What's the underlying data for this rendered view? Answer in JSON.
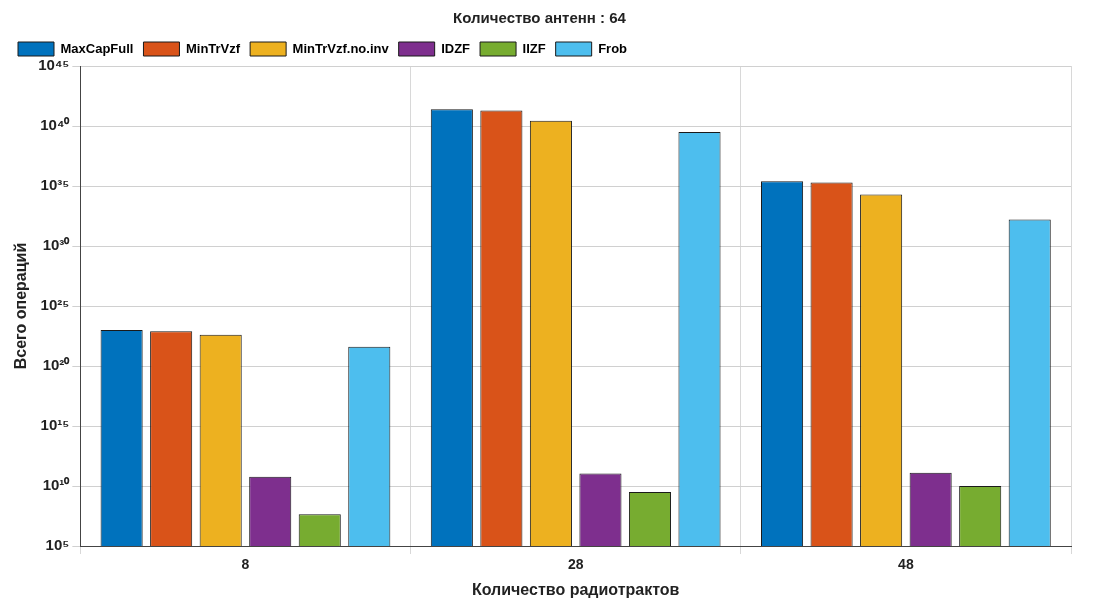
{
  "chart_data": {
    "type": "bar",
    "title": "Количество антенн : 64",
    "xlabel": "Количество радиотрактов",
    "ylabel": "Всего операций",
    "categories": [
      "8",
      "28",
      "48"
    ],
    "series": [
      {
        "name": "MaxCapFull",
        "color": "#0072bd",
        "values": [
          1e+23,
          2.5e+41,
          2.5e+35
        ]
      },
      {
        "name": "MinTrVzf",
        "color": "#d95319",
        "values": [
          8e+22,
          2e+41,
          2e+35
        ]
      },
      {
        "name": "MinTrVzf.no.inv",
        "color": "#edb120",
        "values": [
          4e+22,
          2.8e+40,
          2e+34
        ]
      },
      {
        "name": "IDZF",
        "color": "#7e2f8e",
        "values": [
          60000000000.0,
          110000000000.0,
          130000000000.0
        ]
      },
      {
        "name": "IIZF",
        "color": "#77ac30",
        "values": [
          45000000.0,
          3200000000.0,
          10000000000.0
        ]
      },
      {
        "name": "Frob",
        "color": "#4dbeee",
        "values": [
          4e+21,
          3.2e+39,
          1.6e+32
        ]
      }
    ],
    "log": "y",
    "ylim": [
      100000.0,
      1e+45
    ],
    "yticks": [
      {
        "value": 100000.0,
        "label": "10⁵"
      },
      {
        "value": 10000000000.0,
        "label": "10¹⁰"
      },
      {
        "value": 1000000000000000.0,
        "label": "10¹⁵"
      },
      {
        "value": 1e+20,
        "label": "10²⁰"
      },
      {
        "value": 1e+25,
        "label": "10²⁵"
      },
      {
        "value": 1e+30,
        "label": "10³⁰"
      },
      {
        "value": 1e+35,
        "label": "10³⁵"
      },
      {
        "value": 1e+40,
        "label": "10⁴⁰"
      },
      {
        "value": 1e+45,
        "label": "10⁴⁵"
      }
    ],
    "grid": true,
    "legend": "top left"
  }
}
